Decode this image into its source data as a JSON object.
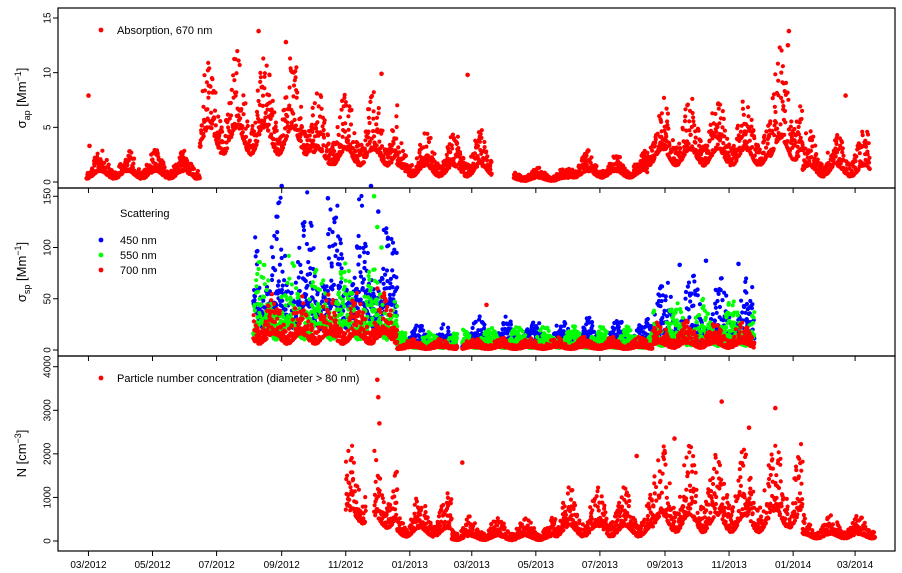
{
  "chart_data": [
    {
      "type": "scatter",
      "ylabel": {
        "main": "σ",
        "sub": "ap",
        "unit_pre": " [Mm",
        "sup": "−1",
        "unit_post": "]"
      },
      "ylim": [
        0,
        15
      ],
      "yticks": [
        0,
        5,
        10,
        15
      ],
      "xlim": [
        "2012-02-01",
        "2014-04-08"
      ],
      "grid": false,
      "legend_position": "top-left",
      "legend_title": "",
      "colors": {
        "main": "#ff0000"
      },
      "series": [
        {
          "name": "Absorption, 670 nm",
          "color": "#ff0000",
          "segments": [
            {
              "start": "2012-02-28",
              "end": "2012-06-15",
              "base": 0.3,
              "noise": 2.0,
              "wave": 0.7,
              "seed": 11
            },
            {
              "start": "2012-06-15",
              "end": "2012-10-01",
              "base": 2.5,
              "noise": 7.0,
              "wave": 2.5,
              "seed": 12
            },
            {
              "start": "2012-10-01",
              "end": "2012-12-20",
              "base": 1.5,
              "noise": 5.5,
              "wave": 1.5,
              "seed": 13
            },
            {
              "start": "2012-12-20",
              "end": "2013-03-20",
              "base": 0.5,
              "noise": 3.5,
              "wave": 1.0,
              "seed": 14
            },
            {
              "start": "2013-04-10",
              "end": "2013-06-01",
              "base": 0.1,
              "noise": 1.0,
              "wave": 0.3,
              "seed": 15
            },
            {
              "start": "2013-06-01",
              "end": "2013-08-15",
              "base": 0.4,
              "noise": 2.0,
              "wave": 0.6,
              "seed": 16
            },
            {
              "start": "2013-08-15",
              "end": "2013-12-10",
              "base": 1.5,
              "noise": 5.0,
              "wave": 1.5,
              "seed": 17
            },
            {
              "start": "2013-12-10",
              "end": "2014-01-10",
              "base": 2.0,
              "noise": 9.0,
              "wave": 2.0,
              "seed": 18
            },
            {
              "start": "2014-01-10",
              "end": "2014-03-15",
              "base": 0.5,
              "noise": 3.5,
              "wave": 1.0,
              "seed": 19
            }
          ],
          "points": [
            [
              "2012-03-01",
              7.9
            ],
            [
              "2012-03-02",
              3.3
            ],
            [
              "2012-08-10",
              13.8
            ],
            [
              "2012-09-05",
              12.8
            ],
            [
              "2012-12-05",
              9.9
            ],
            [
              "2013-02-25",
              9.8
            ],
            [
              "2013-12-28",
              13.8
            ],
            [
              "2013-12-27",
              12.5
            ],
            [
              "2014-02-20",
              7.9
            ]
          ]
        }
      ]
    },
    {
      "type": "scatter",
      "ylabel": {
        "main": "σ",
        "sub": "sp",
        "unit_pre": " [Mm",
        "sup": "−1",
        "unit_post": "]"
      },
      "ylim": [
        0,
        160
      ],
      "yticks": [
        0,
        50,
        100,
        150
      ],
      "xlim": [
        "2012-02-01",
        "2014-04-08"
      ],
      "grid": false,
      "legend_position": "top-left",
      "legend_title": "Scattering",
      "colors": {
        "s450": "#0000ff",
        "s550": "#00ff00",
        "s700": "#ff0000"
      },
      "series": [
        {
          "name": "450 nm",
          "color": "#0000ff",
          "segments": [
            {
              "start": "2012-08-05",
              "end": "2012-12-20",
              "base": 20,
              "noise": 110,
              "wave": 25,
              "seed": 21
            },
            {
              "start": "2012-12-20",
              "end": "2013-02-15",
              "base": 2,
              "noise": 20,
              "wave": 5,
              "seed": 22
            },
            {
              "start": "2013-02-20",
              "end": "2013-08-20",
              "base": 2,
              "noise": 25,
              "wave": 6,
              "seed": 23
            },
            {
              "start": "2013-08-20",
              "end": "2013-11-25",
              "base": 5,
              "noise": 60,
              "wave": 12,
              "seed": 24
            }
          ],
          "points": [
            [
              "2012-09-01",
              160
            ],
            [
              "2012-10-15",
              148
            ],
            [
              "2012-11-25",
              160
            ],
            [
              "2012-12-02",
              135
            ],
            [
              "2013-10-10",
              87
            ],
            [
              "2013-11-10",
              84
            ],
            [
              "2013-09-15",
              83
            ]
          ]
        },
        {
          "name": "550 nm",
          "color": "#00ff00",
          "segments": [
            {
              "start": "2012-08-05",
              "end": "2012-12-20",
              "base": 10,
              "noise": 70,
              "wave": 15,
              "seed": 31
            },
            {
              "start": "2012-12-20",
              "end": "2013-02-15",
              "base": 2,
              "noise": 14,
              "wave": 3,
              "seed": 32
            },
            {
              "start": "2013-02-20",
              "end": "2013-08-20",
              "base": 2,
              "noise": 18,
              "wave": 4,
              "seed": 33
            },
            {
              "start": "2013-08-20",
              "end": "2013-11-25",
              "base": 4,
              "noise": 40,
              "wave": 8,
              "seed": 34
            }
          ],
          "points": [
            [
              "2012-11-28",
              150
            ],
            [
              "2012-12-05",
              100
            ],
            [
              "2012-12-01",
              120
            ]
          ]
        },
        {
          "name": "700 nm",
          "color": "#ff0000",
          "segments": [
            {
              "start": "2012-08-05",
              "end": "2012-12-20",
              "base": 6,
              "noise": 40,
              "wave": 10,
              "seed": 41
            },
            {
              "start": "2012-12-20",
              "end": "2013-02-15",
              "base": 1,
              "noise": 8,
              "wave": 2,
              "seed": 42
            },
            {
              "start": "2013-02-20",
              "end": "2013-08-20",
              "base": 1,
              "noise": 10,
              "wave": 2,
              "seed": 43
            },
            {
              "start": "2013-08-20",
              "end": "2013-11-25",
              "base": 2,
              "noise": 22,
              "wave": 5,
              "seed": 44
            }
          ],
          "points": [
            [
              "2012-12-01",
              60
            ],
            [
              "2013-03-15",
              44
            ]
          ]
        }
      ]
    },
    {
      "type": "scatter",
      "ylabel": {
        "main": "N",
        "sub": "",
        "unit_pre": " [cm",
        "sup": "−3",
        "unit_post": "]"
      },
      "ylim": [
        0,
        4200
      ],
      "yticks": [
        0,
        1000,
        2000,
        3000,
        4000
      ],
      "xlim": [
        "2012-02-01",
        "2014-04-08"
      ],
      "grid": false,
      "legend_position": "top-left",
      "legend_title": "",
      "colors": {
        "main": "#ff0000"
      },
      "series": [
        {
          "name": "Particle number concentration (diameter > 80 nm)",
          "color": "#ff0000",
          "segments": [
            {
              "start": "2012-11-01",
              "end": "2012-11-20",
              "base": 400,
              "noise": 1600,
              "wave": 300,
              "seed": 51
            },
            {
              "start": "2012-11-28",
              "end": "2012-12-20",
              "base": 300,
              "noise": 1500,
              "wave": 300,
              "seed": 52
            },
            {
              "start": "2012-12-20",
              "end": "2013-02-10",
              "base": 100,
              "noise": 800,
              "wave": 200,
              "seed": 53
            },
            {
              "start": "2013-02-10",
              "end": "2013-05-20",
              "base": 20,
              "noise": 450,
              "wave": 100,
              "seed": 54
            },
            {
              "start": "2013-05-20",
              "end": "2013-08-20",
              "base": 100,
              "noise": 900,
              "wave": 250,
              "seed": 55
            },
            {
              "start": "2013-08-20",
              "end": "2013-12-10",
              "base": 200,
              "noise": 1700,
              "wave": 400,
              "seed": 56
            },
            {
              "start": "2013-12-10",
              "end": "2014-01-10",
              "base": 300,
              "noise": 1800,
              "wave": 400,
              "seed": 57
            },
            {
              "start": "2014-01-10",
              "end": "2014-03-20",
              "base": 60,
              "noise": 450,
              "wave": 100,
              "seed": 58
            }
          ],
          "points": [
            [
              "2012-12-01",
              3700
            ],
            [
              "2012-12-02",
              3300
            ],
            [
              "2012-12-03",
              2700
            ],
            [
              "2013-02-20",
              1800
            ],
            [
              "2013-10-25",
              3200
            ],
            [
              "2013-12-15",
              3050
            ],
            [
              "2013-11-20",
              2600
            ],
            [
              "2013-09-10",
              2350
            ],
            [
              "2013-08-05",
              1950
            ]
          ]
        }
      ]
    }
  ],
  "x_axis": {
    "ticks": [
      {
        "label": "03/2012",
        "date": "2012-03-01"
      },
      {
        "label": "05/2012",
        "date": "2012-05-01"
      },
      {
        "label": "07/2012",
        "date": "2012-07-01"
      },
      {
        "label": "09/2012",
        "date": "2012-09-01"
      },
      {
        "label": "11/2012",
        "date": "2012-11-01"
      },
      {
        "label": "01/2013",
        "date": "2013-01-01"
      },
      {
        "label": "03/2013",
        "date": "2013-03-01"
      },
      {
        "label": "05/2013",
        "date": "2013-05-01"
      },
      {
        "label": "07/2013",
        "date": "2013-07-01"
      },
      {
        "label": "09/2013",
        "date": "2013-09-01"
      },
      {
        "label": "11/2013",
        "date": "2013-11-01"
      },
      {
        "label": "01/2014",
        "date": "2014-01-01"
      },
      {
        "label": "03/2014",
        "date": "2014-03-01"
      }
    ]
  }
}
